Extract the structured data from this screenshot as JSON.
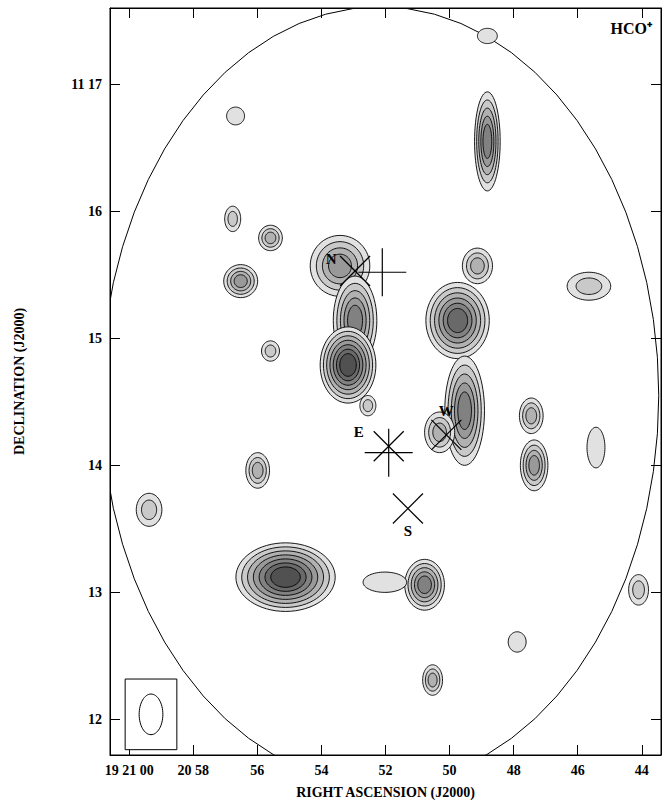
{
  "chart_data": {
    "type": "contour_map",
    "title": "HCO⁺",
    "xlabel": "RIGHT ASCENSION (J2000)",
    "ylabel": "DECLINATION (J2000)",
    "xlim": [
      60.6,
      43.4
    ],
    "ylim": [
      11.72,
      17.6
    ],
    "xticks": [
      {
        "value": 60,
        "label": "19 21 00"
      },
      {
        "value": 58,
        "label": "20 58"
      },
      56,
      54,
      52,
      50,
      48,
      46,
      44
    ],
    "yticks": [
      12,
      13,
      14,
      15,
      16,
      {
        "value": 17,
        "label": "11 17"
      }
    ],
    "clumps": [
      {
        "ra": 53.42,
        "dec": 15.57,
        "a": 0.93,
        "b": 0.24,
        "levels": 4
      },
      {
        "ra": 52.95,
        "dec": 15.14,
        "a": 0.68,
        "b": 0.35,
        "levels": 5
      },
      {
        "ra": 53.17,
        "dec": 14.79,
        "a": 0.87,
        "b": 0.3,
        "levels": 7
      },
      {
        "ra": 49.75,
        "dec": 15.14,
        "a": 0.99,
        "b": 0.3,
        "levels": 6
      },
      {
        "ra": 49.53,
        "dec": 14.43,
        "a": 0.62,
        "b": 0.43,
        "levels": 5
      },
      {
        "ra": 50.31,
        "dec": 14.26,
        "a": 0.47,
        "b": 0.16,
        "levels": 3
      },
      {
        "ra": 48.82,
        "dec": 16.55,
        "a": 0.4,
        "b": 0.39,
        "levels": 5
      },
      {
        "ra": 49.13,
        "dec": 15.57,
        "a": 0.47,
        "b": 0.14,
        "levels": 3
      },
      {
        "ra": 45.65,
        "dec": 15.41,
        "a": 0.68,
        "b": 0.11,
        "levels": 2
      },
      {
        "ra": 47.45,
        "dec": 14.39,
        "a": 0.37,
        "b": 0.14,
        "levels": 3
      },
      {
        "ra": 47.36,
        "dec": 14.0,
        "a": 0.43,
        "b": 0.2,
        "levels": 4
      },
      {
        "ra": 45.43,
        "dec": 14.14,
        "a": 0.28,
        "b": 0.16,
        "levels": 1
      },
      {
        "ra": 44.1,
        "dec": 13.02,
        "a": 0.31,
        "b": 0.12,
        "levels": 2
      },
      {
        "ra": 47.89,
        "dec": 12.61,
        "a": 0.28,
        "b": 0.08,
        "levels": 1
      },
      {
        "ra": 55.12,
        "dec": 13.12,
        "a": 1.55,
        "b": 0.27,
        "levels": 7
      },
      {
        "ra": 50.78,
        "dec": 13.06,
        "a": 0.62,
        "b": 0.2,
        "levels": 5
      },
      {
        "ra": 52.02,
        "dec": 13.08,
        "a": 0.68,
        "b": 0.08,
        "levels": 1
      },
      {
        "ra": 50.53,
        "dec": 12.31,
        "a": 0.31,
        "b": 0.12,
        "levels": 3
      },
      {
        "ra": 56.52,
        "dec": 15.45,
        "a": 0.53,
        "b": 0.13,
        "levels": 4
      },
      {
        "ra": 55.59,
        "dec": 15.79,
        "a": 0.37,
        "b": 0.1,
        "levels": 3
      },
      {
        "ra": 56.77,
        "dec": 15.94,
        "a": 0.25,
        "b": 0.1,
        "levels": 2
      },
      {
        "ra": 55.59,
        "dec": 14.9,
        "a": 0.28,
        "b": 0.08,
        "levels": 2
      },
      {
        "ra": 55.99,
        "dec": 13.96,
        "a": 0.37,
        "b": 0.14,
        "levels": 3
      },
      {
        "ra": 59.38,
        "dec": 13.65,
        "a": 0.4,
        "b": 0.13,
        "levels": 2
      },
      {
        "ra": 52.55,
        "dec": 14.47,
        "a": 0.25,
        "b": 0.08,
        "levels": 2
      },
      {
        "ra": 56.68,
        "dec": 16.75,
        "a": 0.28,
        "b": 0.07,
        "levels": 1
      },
      {
        "ra": 48.82,
        "dec": 17.38,
        "a": 0.31,
        "b": 0.06,
        "levels": 1
      }
    ],
    "markers": [
      {
        "label": "N",
        "ra": 52.95,
        "dec": 15.53,
        "marker": "x"
      },
      {
        "ra": 52.1,
        "dec": 15.52,
        "marker": "+"
      },
      {
        "label": "E",
        "ra": 51.9,
        "dec": 14.15,
        "marker": "x"
      },
      {
        "ra": 51.9,
        "dec": 14.1,
        "marker": "+"
      },
      {
        "label": "W",
        "ra": 50.1,
        "dec": 14.24,
        "marker": "x"
      },
      {
        "label": "S",
        "ra": 51.3,
        "dec": 13.66,
        "marker": "x"
      }
    ],
    "coverage_edge": {
      "ra": 52.17,
      "dec": 14.55,
      "a": 8.7,
      "b": 3.06
    },
    "beam": {
      "ra": 59.32,
      "dec": 12.04,
      "a": 0.37,
      "b": 0.16
    }
  }
}
